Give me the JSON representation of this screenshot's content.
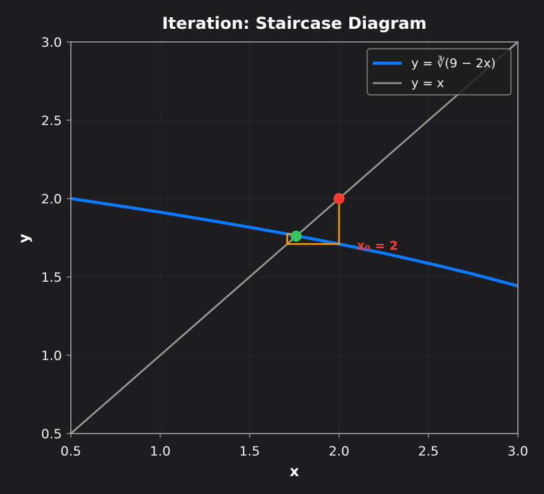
{
  "chart_data": {
    "type": "line",
    "title": "Iteration: Staircase Diagram",
    "xlabel": "x",
    "ylabel": "y",
    "xlim": [
      0.5,
      3.0
    ],
    "ylim": [
      0.5,
      3.0
    ],
    "xticks": [
      0.5,
      1.0,
      1.5,
      2.0,
      2.5,
      3.0
    ],
    "yticks": [
      0.5,
      1.0,
      1.5,
      2.0,
      2.5,
      3.0
    ],
    "xtick_labels": [
      "0.5",
      "1.0",
      "1.5",
      "2.0",
      "2.5",
      "3.0"
    ],
    "ytick_labels": [
      "0.5",
      "1.0",
      "1.5",
      "2.0",
      "2.5",
      "3.0"
    ],
    "grid": true,
    "legend_position": "top-right",
    "series": [
      {
        "name": "y = ∛(9 − 2x)",
        "color": "#0a7aff",
        "x": [
          0.5,
          0.75,
          1.0,
          1.25,
          1.5,
          1.75,
          2.0,
          2.25,
          2.5,
          2.75,
          3.0
        ],
        "y": [
          2.0,
          1.957,
          1.913,
          1.866,
          1.817,
          1.765,
          1.71,
          1.651,
          1.587,
          1.518,
          1.442
        ]
      },
      {
        "name": "y = x",
        "color": "#9a9a9a",
        "x": [
          0.5,
          3.0
        ],
        "y": [
          0.5,
          3.0
        ]
      }
    ],
    "staircase": {
      "color": "#f39c12",
      "x": [
        2.0,
        2.0,
        1.71,
        1.71,
        1.764
      ],
      "y": [
        2.0,
        1.71,
        1.71,
        1.774,
        1.774
      ]
    },
    "points": [
      {
        "x": 2.0,
        "y": 2.0,
        "color": "#ff3b30"
      },
      {
        "x": 1.76,
        "y": 1.76,
        "color": "#34c759"
      }
    ],
    "annotation": {
      "text": "x₀ = 2",
      "x": 2.1,
      "y": 1.7,
      "color": "#ff3b30"
    }
  }
}
